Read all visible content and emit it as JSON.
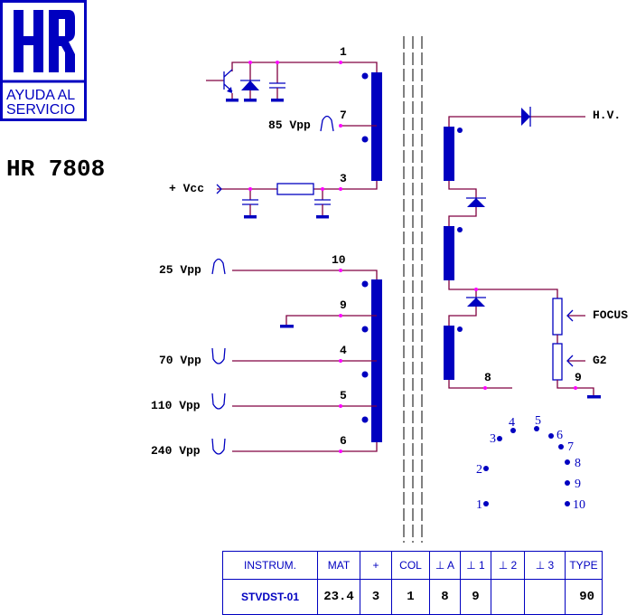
{
  "logo": {
    "letters": "HR",
    "line1": "AYUDA AL",
    "line2": "SERVICIO"
  },
  "model": "HR 7808",
  "colors": {
    "wire": "#800040",
    "component": "#0000c0",
    "node": "#ff00ff"
  },
  "primary": {
    "pins": {
      "p1": "1",
      "p7": "7",
      "p3": "3"
    },
    "pulse_label": "85 Vpp",
    "vcc_label": "+ Vcc"
  },
  "secondary": {
    "pins": {
      "p10": "10",
      "p9": "9",
      "p4": "4",
      "p5": "5",
      "p6": "6"
    },
    "labels": {
      "p10": "25 Vpp",
      "p4": "70 Vpp",
      "p5": "110 Vpp",
      "p6": "240 Vpp"
    }
  },
  "hv": {
    "hv_label": "H.V.",
    "focus_label": "FOCUS",
    "g2_label": "G2",
    "pin8": "8",
    "pin9": "9"
  },
  "pinout": [
    "1",
    "2",
    "3",
    "4",
    "5",
    "6",
    "7",
    "8",
    "9",
    "10"
  ],
  "table": {
    "headers": [
      "INSTRUM.",
      "MAT",
      "+",
      "COL",
      "⊥ A",
      "⊥ 1",
      "⊥ 2",
      "⊥ 3",
      "TYPE"
    ],
    "values": [
      "STVDST-01",
      "23.4",
      "3",
      "1",
      "8",
      "9",
      "",
      "",
      "90"
    ]
  }
}
